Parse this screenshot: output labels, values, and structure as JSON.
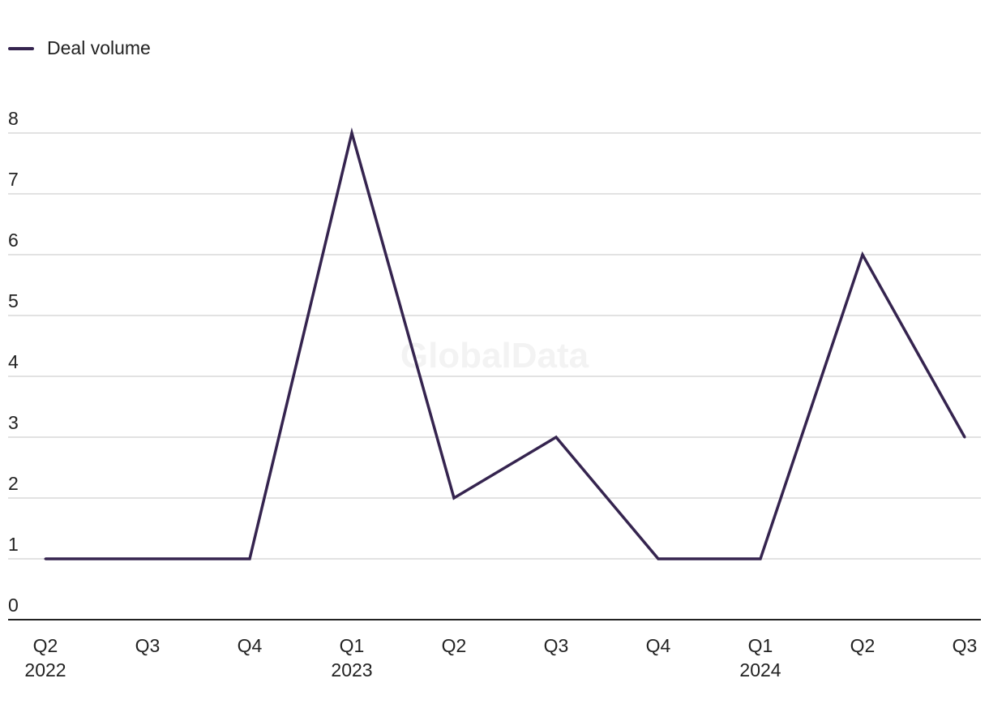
{
  "legend": {
    "label": "Deal volume",
    "color": "#35244f"
  },
  "watermark": "GlobalData",
  "chart_data": {
    "type": "line",
    "title": "",
    "xlabel": "",
    "ylabel": "",
    "categories": [
      [
        "Q2",
        "2022"
      ],
      [
        "Q3",
        ""
      ],
      [
        "Q4",
        ""
      ],
      [
        "Q1",
        "2023"
      ],
      [
        "Q2",
        ""
      ],
      [
        "Q3",
        ""
      ],
      [
        "Q4",
        ""
      ],
      [
        "Q1",
        "2024"
      ],
      [
        "Q2",
        ""
      ],
      [
        "Q3",
        ""
      ]
    ],
    "series": [
      {
        "name": "Deal volume",
        "color": "#35244f",
        "values": [
          1,
          1,
          1,
          8,
          2,
          3,
          1,
          1,
          6,
          3
        ]
      }
    ],
    "ylim": [
      0,
      8
    ],
    "yticks": [
      0,
      1,
      2,
      3,
      4,
      5,
      6,
      7,
      8
    ],
    "grid": true,
    "legend_position": "top-left"
  }
}
